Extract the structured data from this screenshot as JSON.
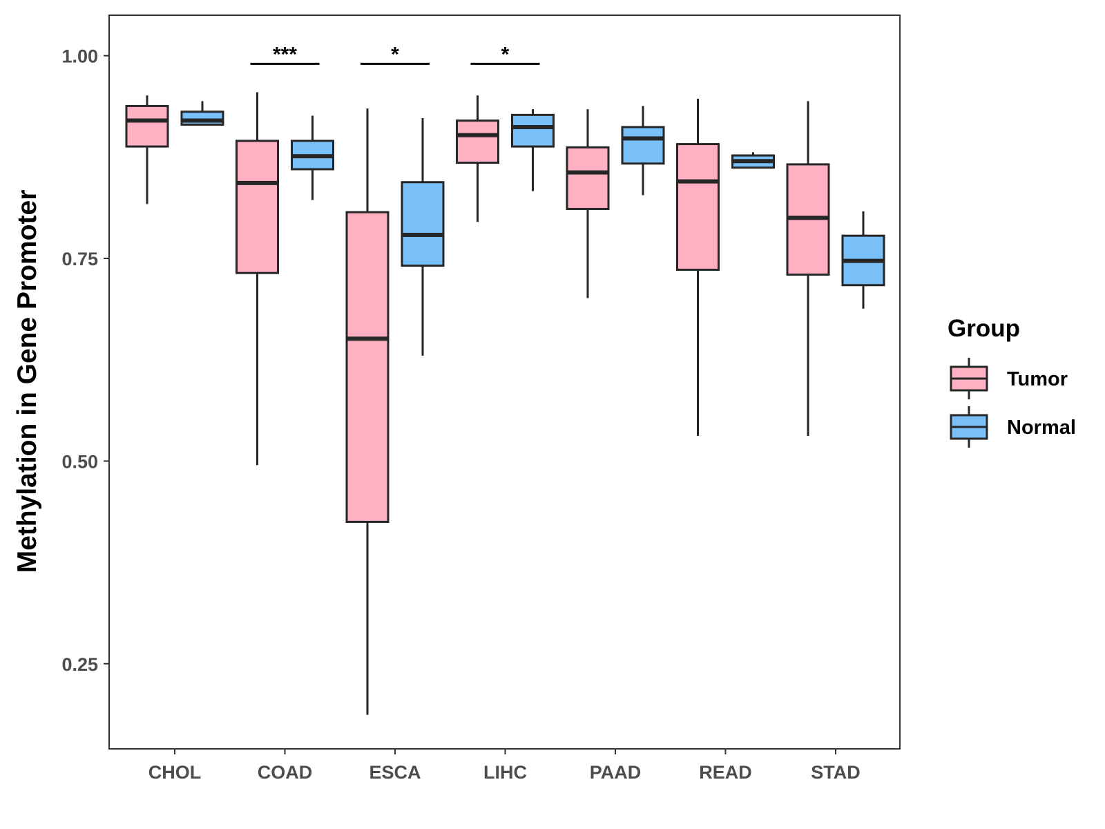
{
  "chart_data": {
    "type": "boxplot",
    "title": "",
    "xlabel": "",
    "ylabel": "Methylation in Gene Promoter",
    "ylim": [
      0.145,
      1.05
    ],
    "yticks": [
      0.25,
      0.5,
      0.75,
      1.0
    ],
    "ytick_labels": [
      "0.25",
      "0.50",
      "0.75",
      "1.00"
    ],
    "categories": [
      "CHOL",
      "COAD",
      "ESCA",
      "LIHC",
      "PAAD",
      "READ",
      "STAD"
    ],
    "legend": {
      "title": "Group",
      "position": "right",
      "entries": [
        {
          "name": "Tumor",
          "color": "#FFB1C3"
        },
        {
          "name": "Normal",
          "color": "#79BFF8"
        }
      ]
    },
    "series": [
      {
        "name": "Tumor",
        "color": "#FFB1C3",
        "boxes": [
          {
            "category": "CHOL",
            "whisker_low": 0.817,
            "q1": 0.888,
            "median": 0.92,
            "q3": 0.938,
            "whisker_high": 0.951
          },
          {
            "category": "COAD",
            "whisker_low": 0.495,
            "q1": 0.732,
            "median": 0.843,
            "q3": 0.895,
            "whisker_high": 0.955
          },
          {
            "category": "ESCA",
            "whisker_low": 0.187,
            "q1": 0.425,
            "median": 0.651,
            "q3": 0.807,
            "whisker_high": 0.935
          },
          {
            "category": "LIHC",
            "whisker_low": 0.795,
            "q1": 0.868,
            "median": 0.902,
            "q3": 0.92,
            "whisker_high": 0.951
          },
          {
            "category": "PAAD",
            "whisker_low": 0.701,
            "q1": 0.811,
            "median": 0.856,
            "q3": 0.887,
            "whisker_high": 0.934
          },
          {
            "category": "READ",
            "whisker_low": 0.531,
            "q1": 0.736,
            "median": 0.845,
            "q3": 0.891,
            "whisker_high": 0.947
          },
          {
            "category": "STAD",
            "whisker_low": 0.531,
            "q1": 0.73,
            "median": 0.8,
            "q3": 0.866,
            "whisker_high": 0.944
          }
        ]
      },
      {
        "name": "Normal",
        "color": "#79BFF8",
        "boxes": [
          {
            "category": "CHOL",
            "whisker_low": 0.915,
            "q1": 0.915,
            "median": 0.92,
            "q3": 0.931,
            "whisker_high": 0.944
          },
          {
            "category": "COAD",
            "whisker_low": 0.822,
            "q1": 0.86,
            "median": 0.876,
            "q3": 0.895,
            "whisker_high": 0.926
          },
          {
            "category": "ESCA",
            "whisker_low": 0.63,
            "q1": 0.741,
            "median": 0.779,
            "q3": 0.844,
            "whisker_high": 0.923
          },
          {
            "category": "LIHC",
            "whisker_low": 0.833,
            "q1": 0.888,
            "median": 0.912,
            "q3": 0.927,
            "whisker_high": 0.934
          },
          {
            "category": "PAAD",
            "whisker_low": 0.828,
            "q1": 0.867,
            "median": 0.898,
            "q3": 0.912,
            "whisker_high": 0.938
          },
          {
            "category": "READ",
            "whisker_low": 0.862,
            "q1": 0.862,
            "median": 0.87,
            "q3": 0.877,
            "whisker_high": 0.881
          },
          {
            "category": "STAD",
            "whisker_low": 0.688,
            "q1": 0.717,
            "median": 0.747,
            "q3": 0.778,
            "whisker_high": 0.808
          }
        ]
      }
    ],
    "annotations": [
      {
        "category": "COAD",
        "label": "***",
        "y": 0.99
      },
      {
        "category": "ESCA",
        "label": "*",
        "y": 0.99
      },
      {
        "category": "LIHC",
        "label": "*",
        "y": 0.99
      }
    ]
  }
}
